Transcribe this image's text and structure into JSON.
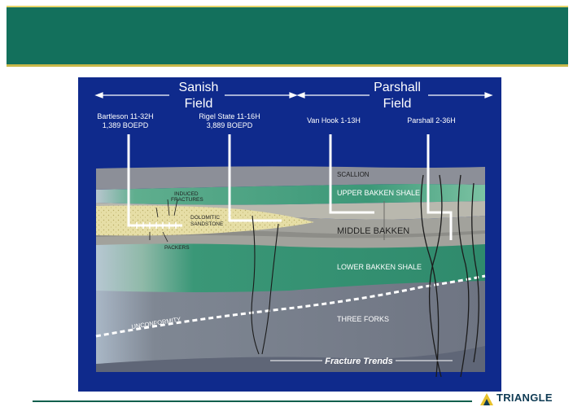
{
  "fields": {
    "sanish": {
      "line1": "Sanish",
      "line2": "Field"
    },
    "parshall": {
      "line1": "Parshall",
      "line2": "Field"
    }
  },
  "wells": [
    {
      "name": "Bartleson 11-32H",
      "rate": "1,389 BOEPD"
    },
    {
      "name": "Rigel State 11-16H",
      "rate": "3,889 BOEPD"
    },
    {
      "name": "Van Hook 1-13H",
      "rate": ""
    },
    {
      "name": "Parshall 2-36H",
      "rate": ""
    }
  ],
  "layers": {
    "scallion": "SCALLION",
    "upper_bakken_shale": "UPPER BAKKEN SHALE",
    "middle_bakken": "MIDDLE BAKKEN",
    "lower_bakken_shale": "LOWER BAKKEN SHALE",
    "three_forks": "THREE FORKS"
  },
  "annotations": {
    "induced_line1": "INDUCED",
    "induced_line2": "FRACTURES",
    "dolomitic_line1": "DOLOMITIC",
    "dolomitic_line2": "SANDSTONE",
    "packers": "PACKERS",
    "unconformity": "UNCONFORMITY",
    "fracture_trends": "Fracture Trends"
  },
  "logo": {
    "text": "TRIANGLE"
  },
  "colors": {
    "header": "#13705c",
    "background": "#0f2a8c",
    "shale_green": "#3e9a7a",
    "middle_grey": "#9a9a96",
    "sandstone": "#e4dca0",
    "three_forks": "#7a7e8a"
  }
}
